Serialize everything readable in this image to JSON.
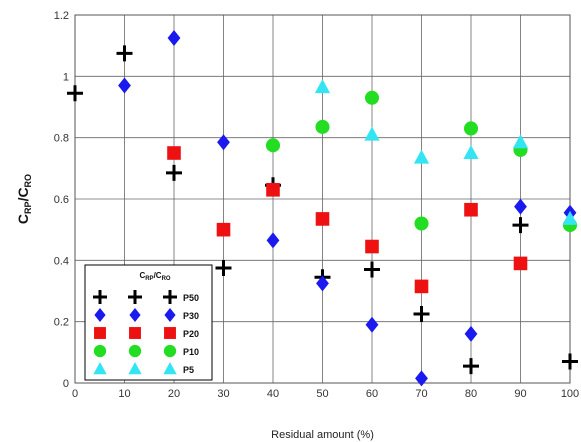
{
  "chart_data": {
    "type": "scatter",
    "xlabel": "Residual amount (%)",
    "ylabel": {
      "main": "C",
      "sub1": "RP",
      "sep": "/C",
      "sub2": "RO"
    },
    "xlim": [
      0,
      100
    ],
    "ylim": [
      0,
      1.2
    ],
    "xticks": [
      "0",
      "10",
      "20",
      "30",
      "40",
      "50",
      "60",
      "70",
      "80",
      "90",
      "100"
    ],
    "yticks": [
      "0",
      "0.2",
      "0.4",
      "0.6",
      "0.8",
      "1",
      "1.2"
    ],
    "grid": true,
    "legend": {
      "placement": "bottom-left",
      "title": {
        "main": "C",
        "sub1": "RP",
        "sep": "/C",
        "sub2": "RO"
      }
    },
    "series": [
      {
        "name": "P50",
        "marker": "plus",
        "color": "#000000",
        "points": [
          [
            0,
            0.945
          ],
          [
            10,
            1.075
          ],
          [
            20,
            0.685
          ],
          [
            30,
            0.375
          ],
          [
            40,
            0.645
          ],
          [
            50,
            0.345
          ],
          [
            60,
            0.37
          ],
          [
            70,
            0.225
          ],
          [
            80,
            0.055
          ],
          [
            90,
            0.515
          ],
          [
            100,
            0.07
          ]
        ]
      },
      {
        "name": "P30",
        "marker": "diamond",
        "color": "#1a1aee",
        "points": [
          [
            10,
            0.97
          ],
          [
            20,
            1.125
          ],
          [
            30,
            0.785
          ],
          [
            40,
            0.465
          ],
          [
            50,
            0.325
          ],
          [
            60,
            0.19
          ],
          [
            70,
            0.015
          ],
          [
            80,
            0.16
          ],
          [
            90,
            0.575
          ],
          [
            100,
            0.555
          ]
        ]
      },
      {
        "name": "P20",
        "marker": "square",
        "color": "#ee1111",
        "points": [
          [
            20,
            0.75
          ],
          [
            30,
            0.5
          ],
          [
            40,
            0.63
          ],
          [
            50,
            0.535
          ],
          [
            60,
            0.445
          ],
          [
            70,
            0.315
          ],
          [
            80,
            0.565
          ],
          [
            90,
            0.39
          ]
        ]
      },
      {
        "name": "P10",
        "marker": "circle",
        "color": "#22dd22",
        "points": [
          [
            40,
            0.775
          ],
          [
            50,
            0.835
          ],
          [
            60,
            0.93
          ],
          [
            70,
            0.52
          ],
          [
            80,
            0.83
          ],
          [
            90,
            0.76
          ],
          [
            100,
            0.515
          ]
        ]
      },
      {
        "name": "P5",
        "marker": "triangle",
        "color": "#33e5f2",
        "points": [
          [
            50,
            0.965
          ],
          [
            60,
            0.81
          ],
          [
            70,
            0.735
          ],
          [
            80,
            0.75
          ],
          [
            90,
            0.785
          ],
          [
            100,
            0.535
          ]
        ]
      }
    ]
  }
}
